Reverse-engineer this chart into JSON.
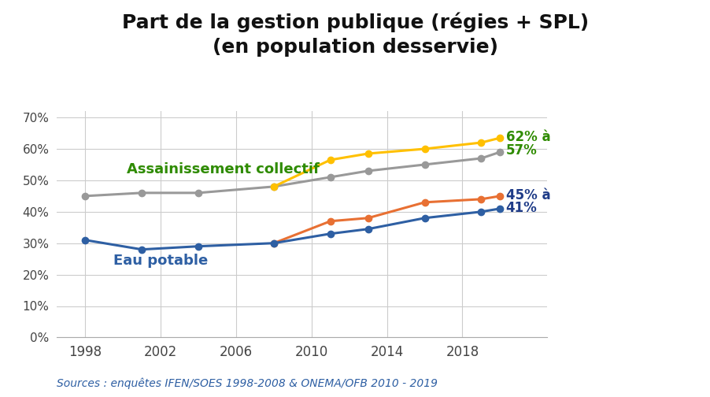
{
  "title": "Part de la gestion publique (régies + SPL)\n(en population desservie)",
  "source": "Sources : enquêtes IFEN/SOES 1998-2008 & ONEMA/OFB 2010 - 2019",
  "assainissement_collectif_label": "Assainissement collectif",
  "eau_potable_label": "Eau potable",
  "gray_x": [
    1998,
    2001,
    2004,
    2008,
    2011,
    2013,
    2016,
    2019,
    2020
  ],
  "gray_y": [
    0.45,
    0.46,
    0.46,
    0.48,
    0.51,
    0.53,
    0.55,
    0.57,
    0.59
  ],
  "yellow_x": [
    2008,
    2011,
    2013,
    2016,
    2019,
    2020
  ],
  "yellow_y": [
    0.48,
    0.565,
    0.585,
    0.6,
    0.62,
    0.635
  ],
  "orange_x": [
    2008,
    2011,
    2013,
    2016,
    2019,
    2020
  ],
  "orange_y": [
    0.3,
    0.37,
    0.38,
    0.43,
    0.44,
    0.45
  ],
  "blue_x": [
    1998,
    2001,
    2004,
    2008,
    2011,
    2013,
    2016,
    2019,
    2020
  ],
  "blue_y": [
    0.31,
    0.28,
    0.29,
    0.3,
    0.33,
    0.345,
    0.38,
    0.4,
    0.41
  ],
  "gray_color": "#999999",
  "yellow_color": "#FFC000",
  "orange_color": "#E87033",
  "blue_color": "#2E5FA3",
  "green_color": "#2E8B00",
  "dark_blue": "#1F3C88",
  "annotation_top_text1": "62% à",
  "annotation_top_text2": "57%",
  "annotation_bot_text1": "45% à",
  "annotation_bot_text2": "41%",
  "xlim": [
    1996.5,
    2022.5
  ],
  "ylim": [
    0.0,
    0.72
  ],
  "xticks": [
    1998,
    2002,
    2006,
    2010,
    2014,
    2018
  ],
  "yticks": [
    0.0,
    0.1,
    0.2,
    0.3,
    0.4,
    0.5,
    0.6,
    0.7
  ],
  "background_color": "#FFFFFF",
  "title_fontsize": 18,
  "label_fontsize": 13,
  "annotation_fontsize": 12,
  "source_fontsize": 10
}
